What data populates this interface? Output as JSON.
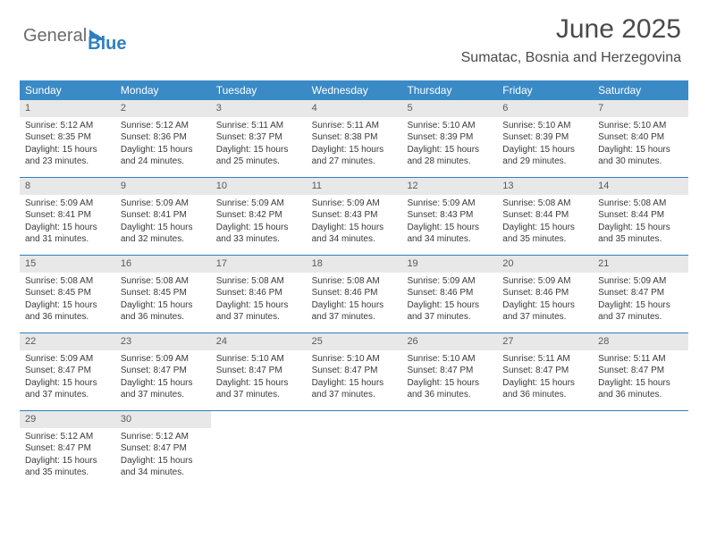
{
  "logo": {
    "text1": "General",
    "text2": "Blue"
  },
  "header": {
    "title": "June 2025",
    "location": "Sumatac, Bosnia and Herzegovina"
  },
  "colors": {
    "header_bg": "#3a8ac6",
    "header_text": "#ffffff",
    "daynum_bg": "#e8e8e8",
    "week_border": "#2f7fbf",
    "text": "#3a3a3a",
    "title": "#4a4a4a",
    "logo_gray": "#6b6b6b",
    "logo_blue": "#2f7fbf"
  },
  "weekdays": [
    "Sunday",
    "Monday",
    "Tuesday",
    "Wednesday",
    "Thursday",
    "Friday",
    "Saturday"
  ],
  "days": [
    {
      "n": "1",
      "sr": "5:12 AM",
      "ss": "8:35 PM",
      "dl": "15 hours and 23 minutes."
    },
    {
      "n": "2",
      "sr": "5:12 AM",
      "ss": "8:36 PM",
      "dl": "15 hours and 24 minutes."
    },
    {
      "n": "3",
      "sr": "5:11 AM",
      "ss": "8:37 PM",
      "dl": "15 hours and 25 minutes."
    },
    {
      "n": "4",
      "sr": "5:11 AM",
      "ss": "8:38 PM",
      "dl": "15 hours and 27 minutes."
    },
    {
      "n": "5",
      "sr": "5:10 AM",
      "ss": "8:39 PM",
      "dl": "15 hours and 28 minutes."
    },
    {
      "n": "6",
      "sr": "5:10 AM",
      "ss": "8:39 PM",
      "dl": "15 hours and 29 minutes."
    },
    {
      "n": "7",
      "sr": "5:10 AM",
      "ss": "8:40 PM",
      "dl": "15 hours and 30 minutes."
    },
    {
      "n": "8",
      "sr": "5:09 AM",
      "ss": "8:41 PM",
      "dl": "15 hours and 31 minutes."
    },
    {
      "n": "9",
      "sr": "5:09 AM",
      "ss": "8:41 PM",
      "dl": "15 hours and 32 minutes."
    },
    {
      "n": "10",
      "sr": "5:09 AM",
      "ss": "8:42 PM",
      "dl": "15 hours and 33 minutes."
    },
    {
      "n": "11",
      "sr": "5:09 AM",
      "ss": "8:43 PM",
      "dl": "15 hours and 34 minutes."
    },
    {
      "n": "12",
      "sr": "5:09 AM",
      "ss": "8:43 PM",
      "dl": "15 hours and 34 minutes."
    },
    {
      "n": "13",
      "sr": "5:08 AM",
      "ss": "8:44 PM",
      "dl": "15 hours and 35 minutes."
    },
    {
      "n": "14",
      "sr": "5:08 AM",
      "ss": "8:44 PM",
      "dl": "15 hours and 35 minutes."
    },
    {
      "n": "15",
      "sr": "5:08 AM",
      "ss": "8:45 PM",
      "dl": "15 hours and 36 minutes."
    },
    {
      "n": "16",
      "sr": "5:08 AM",
      "ss": "8:45 PM",
      "dl": "15 hours and 36 minutes."
    },
    {
      "n": "17",
      "sr": "5:08 AM",
      "ss": "8:46 PM",
      "dl": "15 hours and 37 minutes."
    },
    {
      "n": "18",
      "sr": "5:08 AM",
      "ss": "8:46 PM",
      "dl": "15 hours and 37 minutes."
    },
    {
      "n": "19",
      "sr": "5:09 AM",
      "ss": "8:46 PM",
      "dl": "15 hours and 37 minutes."
    },
    {
      "n": "20",
      "sr": "5:09 AM",
      "ss": "8:46 PM",
      "dl": "15 hours and 37 minutes."
    },
    {
      "n": "21",
      "sr": "5:09 AM",
      "ss": "8:47 PM",
      "dl": "15 hours and 37 minutes."
    },
    {
      "n": "22",
      "sr": "5:09 AM",
      "ss": "8:47 PM",
      "dl": "15 hours and 37 minutes."
    },
    {
      "n": "23",
      "sr": "5:09 AM",
      "ss": "8:47 PM",
      "dl": "15 hours and 37 minutes."
    },
    {
      "n": "24",
      "sr": "5:10 AM",
      "ss": "8:47 PM",
      "dl": "15 hours and 37 minutes."
    },
    {
      "n": "25",
      "sr": "5:10 AM",
      "ss": "8:47 PM",
      "dl": "15 hours and 37 minutes."
    },
    {
      "n": "26",
      "sr": "5:10 AM",
      "ss": "8:47 PM",
      "dl": "15 hours and 36 minutes."
    },
    {
      "n": "27",
      "sr": "5:11 AM",
      "ss": "8:47 PM",
      "dl": "15 hours and 36 minutes."
    },
    {
      "n": "28",
      "sr": "5:11 AM",
      "ss": "8:47 PM",
      "dl": "15 hours and 36 minutes."
    },
    {
      "n": "29",
      "sr": "5:12 AM",
      "ss": "8:47 PM",
      "dl": "15 hours and 35 minutes."
    },
    {
      "n": "30",
      "sr": "5:12 AM",
      "ss": "8:47 PM",
      "dl": "15 hours and 34 minutes."
    }
  ],
  "labels": {
    "sunrise": "Sunrise:",
    "sunset": "Sunset:",
    "daylight": "Daylight:"
  },
  "layout": {
    "start_weekday": 0,
    "days_in_month": 30,
    "columns": 7
  }
}
